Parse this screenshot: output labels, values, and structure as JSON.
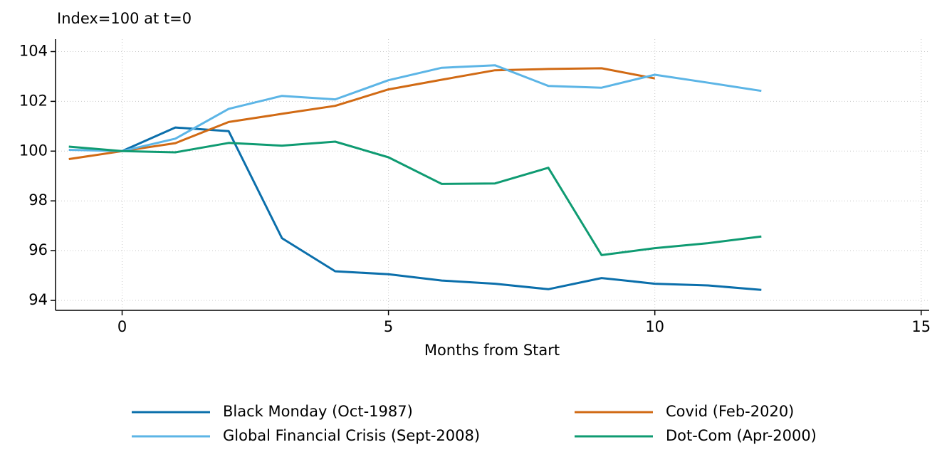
{
  "chart_data": {
    "type": "line",
    "title": "Index=100 at t=0",
    "x_label": "Months from Start",
    "x": [
      -1,
      0,
      1,
      2,
      3,
      4,
      5,
      6,
      7,
      8,
      9,
      10,
      11,
      12
    ],
    "series": [
      {
        "name": "Black Monday (Oct-1987)",
        "color": "#0b6fab",
        "values": [
          null,
          100,
          100.95,
          100.8,
          96.5,
          95.17,
          95.05,
          94.8,
          94.67,
          94.45,
          94.9,
          94.67,
          94.6,
          94.42
        ]
      },
      {
        "name": "Covid (Feb-2020)",
        "color": "#d16a14",
        "values": [
          99.68,
          100,
          100.32,
          101.17,
          101.5,
          101.82,
          102.48,
          102.87,
          103.25,
          103.3,
          103.33,
          102.92,
          null,
          null
        ]
      },
      {
        "name": "Global Financial Crisis (Sept-2008)",
        "color": "#5cb5e6",
        "values": [
          100.05,
          100,
          100.5,
          101.7,
          102.22,
          102.08,
          102.85,
          103.35,
          103.45,
          102.62,
          102.55,
          103.07,
          102.75,
          102.42
        ]
      },
      {
        "name": "Dot-Com (Apr-2000)",
        "color": "#0f9b72",
        "values": [
          100.18,
          100,
          99.95,
          100.33,
          100.22,
          100.38,
          99.75,
          98.68,
          98.7,
          99.33,
          95.82,
          96.1,
          96.3,
          96.57
        ]
      }
    ],
    "xlim": [
      -1.25,
      15.15
    ],
    "xticks": [
      0,
      5,
      10,
      15
    ],
    "ylim": [
      93.6,
      104.5
    ],
    "yticks": [
      94,
      96,
      98,
      100,
      102,
      104
    ],
    "grid": true,
    "legend": "bottom"
  }
}
